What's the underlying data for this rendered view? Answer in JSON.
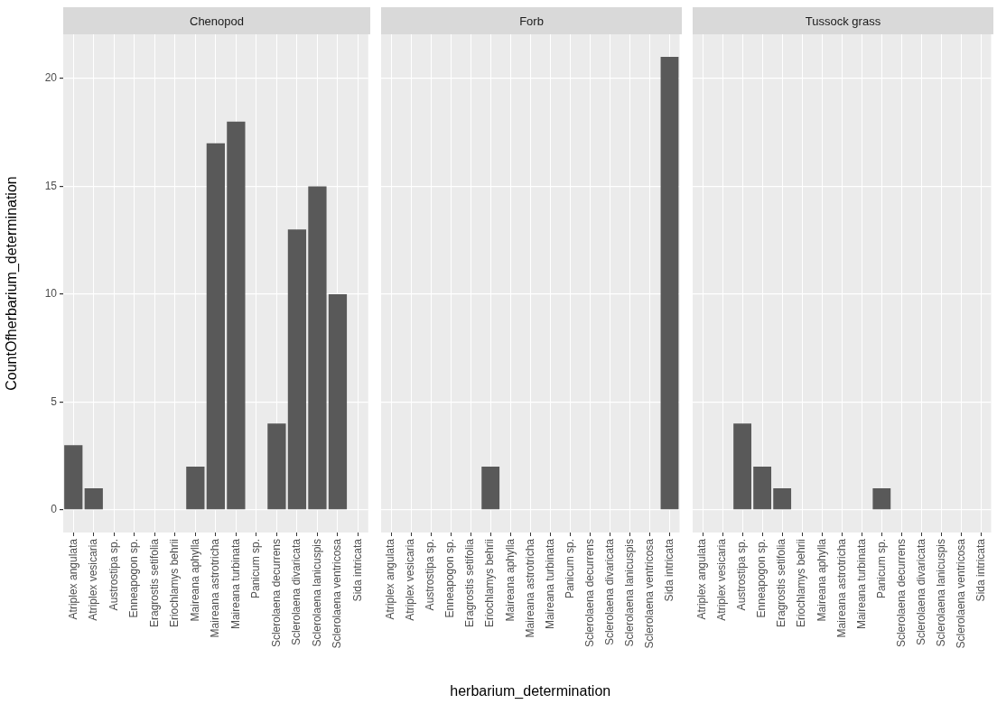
{
  "chart_data": [
    {
      "type": "bar",
      "title": "Chenopod",
      "ylabel": "CountOfherbarium_determination",
      "categories": [
        "Atriplex angulata",
        "Atriplex vesicaria",
        "Austrostipa sp.",
        "Enneapogon sp.",
        "Eragrostis setifolia",
        "Eriochlamys behrii",
        "Maireana aphylla",
        "Maireana astrotricha",
        "Maireana turbinata",
        "Panicum sp.",
        "Sclerolaena decurrens",
        "Sclerolaena divaricata",
        "Sclerolaena lanicuspis",
        "Sclerolaena ventricosa",
        "Sida intricata"
      ],
      "series": [
        {
          "color": "#595959",
          "values": [
            3,
            1,
            null,
            null,
            null,
            null,
            2,
            17,
            18,
            null,
            4,
            13,
            15,
            10,
            null
          ]
        }
      ],
      "ylim": [
        -1.05,
        22.05
      ],
      "yticks": [
        0,
        5,
        10,
        15,
        20
      ],
      "grid": true,
      "legend": false
    },
    {
      "type": "bar",
      "title": "Forb",
      "xlabel": "herbarium_determination",
      "categories": [
        "Atriplex angulata",
        "Atriplex vesicaria",
        "Austrostipa sp.",
        "Enneapogon sp.",
        "Eragrostis setifolia",
        "Eriochlamys behrii",
        "Maireana aphylla",
        "Maireana astrotricha",
        "Maireana turbinata",
        "Panicum sp.",
        "Sclerolaena decurrens",
        "Sclerolaena divaricata",
        "Sclerolaena lanicuspis",
        "Sclerolaena ventricosa",
        "Sida intricata"
      ],
      "series": [
        {
          "color": "#595959",
          "values": [
            null,
            null,
            null,
            null,
            null,
            2,
            null,
            null,
            null,
            null,
            null,
            null,
            null,
            null,
            21
          ]
        }
      ],
      "ylim": [
        -1.05,
        22.05
      ],
      "yticks": [
        0,
        5,
        10,
        15,
        20
      ],
      "grid": true,
      "legend": false,
      "tick_labels": "x"
    },
    {
      "type": "bar",
      "title": "Tussock grass",
      "categories": [
        "Atriplex angulata",
        "Atriplex vesicaria",
        "Austrostipa sp.",
        "Enneapogon sp.",
        "Eragrostis setifolia",
        "Eriochlamys behrii",
        "Maireana aphylla",
        "Maireana astrotricha",
        "Maireana turbinata",
        "Panicum sp.",
        "Sclerolaena decurrens",
        "Sclerolaena divaricata",
        "Sclerolaena lanicuspis",
        "Sclerolaena ventricosa",
        "Sida intricata"
      ],
      "series": [
        {
          "color": "#595959",
          "values": [
            null,
            null,
            4,
            2,
            1,
            null,
            null,
            null,
            null,
            1,
            null,
            null,
            null,
            null,
            null
          ]
        }
      ],
      "ylim": [
        -1.05,
        22.05
      ],
      "yticks": [
        0,
        5,
        10,
        15,
        20
      ],
      "grid": true,
      "legend": false,
      "tick_labels": "x"
    }
  ]
}
